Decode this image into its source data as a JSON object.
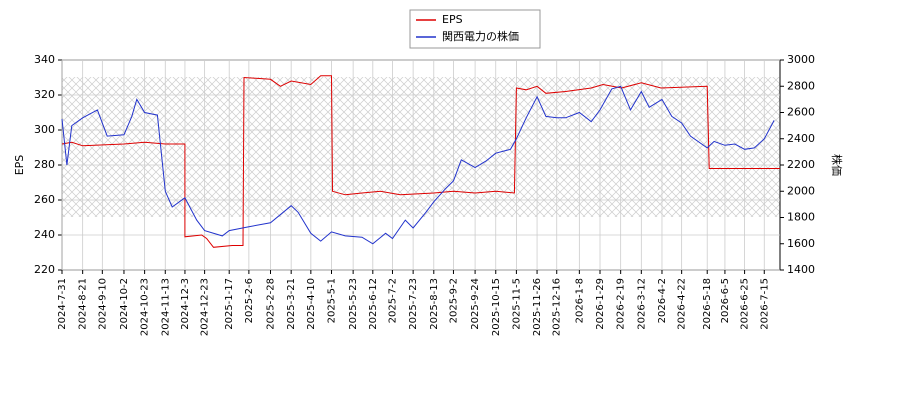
{
  "chart_data": {
    "type": "line",
    "ylabel": "EPS",
    "y2label": "株価",
    "ylim": [
      220,
      340
    ],
    "yticks": [
      220,
      240,
      260,
      280,
      300,
      320,
      340
    ],
    "y2lim": [
      1400,
      3000
    ],
    "y2ticks": [
      1400,
      1600,
      1800,
      2000,
      2200,
      2400,
      2600,
      2800,
      3000
    ],
    "xlim": [
      "2024-7-31",
      "2026-7-31"
    ],
    "xticks": [
      "2024-7-31",
      "2024-8-21",
      "2024-9-10",
      "2024-10-2",
      "2024-10-23",
      "2024-11-13",
      "2024-12-3",
      "2024-12-23",
      "2025-1-17",
      "2025-2-6",
      "2025-2-28",
      "2025-3-21",
      "2025-4-10",
      "2025-5-1",
      "2025-5-23",
      "2025-6-12",
      "2025-7-2",
      "2025-7-23",
      "2025-8-13",
      "2025-9-2",
      "2025-9-24",
      "2025-10-15",
      "2025-11-5",
      "2025-11-26",
      "2025-12-16",
      "2026-1-8",
      "2026-1-29",
      "2026-2-19",
      "2026-3-12",
      "2026-4-2",
      "2026-4-22",
      "2026-5-18",
      "2026-6-5",
      "2026-6-25",
      "2026-7-15"
    ],
    "grid": true,
    "series": [
      {
        "name": "EPS",
        "color": "#dd0000",
        "x": [
          "2024-7-31",
          "2024-8-10",
          "2024-8-21",
          "2024-10-2",
          "2024-10-23",
          "2024-11-13",
          "2024-12-3",
          "2024-12-3",
          "2024-12-20",
          "2024-12-25",
          "2025-1-1",
          "2025-1-20",
          "2025-1-31",
          "2025-2-1",
          "2025-2-28",
          "2025-3-10",
          "2025-3-21",
          "2025-4-10",
          "2025-4-20",
          "2025-5-1",
          "2025-5-2",
          "2025-5-15",
          "2025-6-1",
          "2025-6-20",
          "2025-7-10",
          "2025-8-13",
          "2025-9-2",
          "2025-9-24",
          "2025-10-15",
          "2025-11-3",
          "2025-11-5",
          "2025-11-15",
          "2025-11-26",
          "2025-12-5",
          "2025-12-25",
          "2026-1-20",
          "2026-2-1",
          "2026-2-20",
          "2026-3-12",
          "2026-4-1",
          "2026-5-18",
          "2026-5-20",
          "2026-7-31"
        ],
        "values": [
          292,
          293,
          291,
          292,
          293,
          292,
          292,
          239,
          240,
          238,
          233,
          234,
          234,
          330,
          329,
          325,
          328,
          326,
          331,
          331,
          265,
          263,
          264,
          265,
          263,
          264,
          265,
          264,
          265,
          264,
          324,
          323,
          325,
          321,
          322,
          324,
          326,
          324,
          327,
          324,
          325,
          278,
          278
        ]
      },
      {
        "name": "関西電力の株価",
        "color": "#2233cc",
        "axis": "y2",
        "x": [
          "2024-7-31",
          "2024-8-5",
          "2024-8-10",
          "2024-8-21",
          "2024-9-5",
          "2024-9-15",
          "2024-10-2",
          "2024-10-10",
          "2024-10-15",
          "2024-10-23",
          "2024-11-5",
          "2024-11-13",
          "2024-11-20",
          "2024-12-3",
          "2024-12-15",
          "2024-12-23",
          "2025-1-10",
          "2025-1-17",
          "2025-2-6",
          "2025-2-28",
          "2025-3-21",
          "2025-3-28",
          "2025-4-10",
          "2025-4-20",
          "2025-5-1",
          "2025-5-15",
          "2025-6-1",
          "2025-6-12",
          "2025-6-25",
          "2025-7-2",
          "2025-7-15",
          "2025-7-23",
          "2025-8-5",
          "2025-8-13",
          "2025-8-25",
          "2025-9-2",
          "2025-9-10",
          "2025-9-24",
          "2025-10-5",
          "2025-10-15",
          "2025-10-30",
          "2025-11-5",
          "2025-11-15",
          "2025-11-26",
          "2025-12-5",
          "2025-12-16",
          "2025-12-25",
          "2026-1-8",
          "2026-1-20",
          "2026-1-29",
          "2026-2-10",
          "2026-2-19",
          "2026-3-1",
          "2026-3-12",
          "2026-3-20",
          "2026-4-2",
          "2026-4-12",
          "2026-4-22",
          "2026-5-1",
          "2026-5-18",
          "2026-5-25",
          "2026-6-5",
          "2026-6-15",
          "2026-6-25",
          "2026-7-5",
          "2026-7-15",
          "2026-7-25"
        ],
        "values": [
          2550,
          2200,
          2500,
          2560,
          2620,
          2420,
          2430,
          2570,
          2700,
          2600,
          2580,
          2000,
          1880,
          1950,
          1780,
          1700,
          1660,
          1700,
          1730,
          1760,
          1890,
          1840,
          1680,
          1620,
          1690,
          1660,
          1650,
          1600,
          1680,
          1640,
          1780,
          1720,
          1840,
          1920,
          2020,
          2080,
          2240,
          2180,
          2230,
          2290,
          2320,
          2400,
          2560,
          2720,
          2570,
          2560,
          2560,
          2600,
          2530,
          2620,
          2780,
          2800,
          2620,
          2760,
          2640,
          2700,
          2570,
          2520,
          2420,
          2330,
          2380,
          2350,
          2360,
          2320,
          2330,
          2400,
          2540
        ]
      }
    ]
  }
}
